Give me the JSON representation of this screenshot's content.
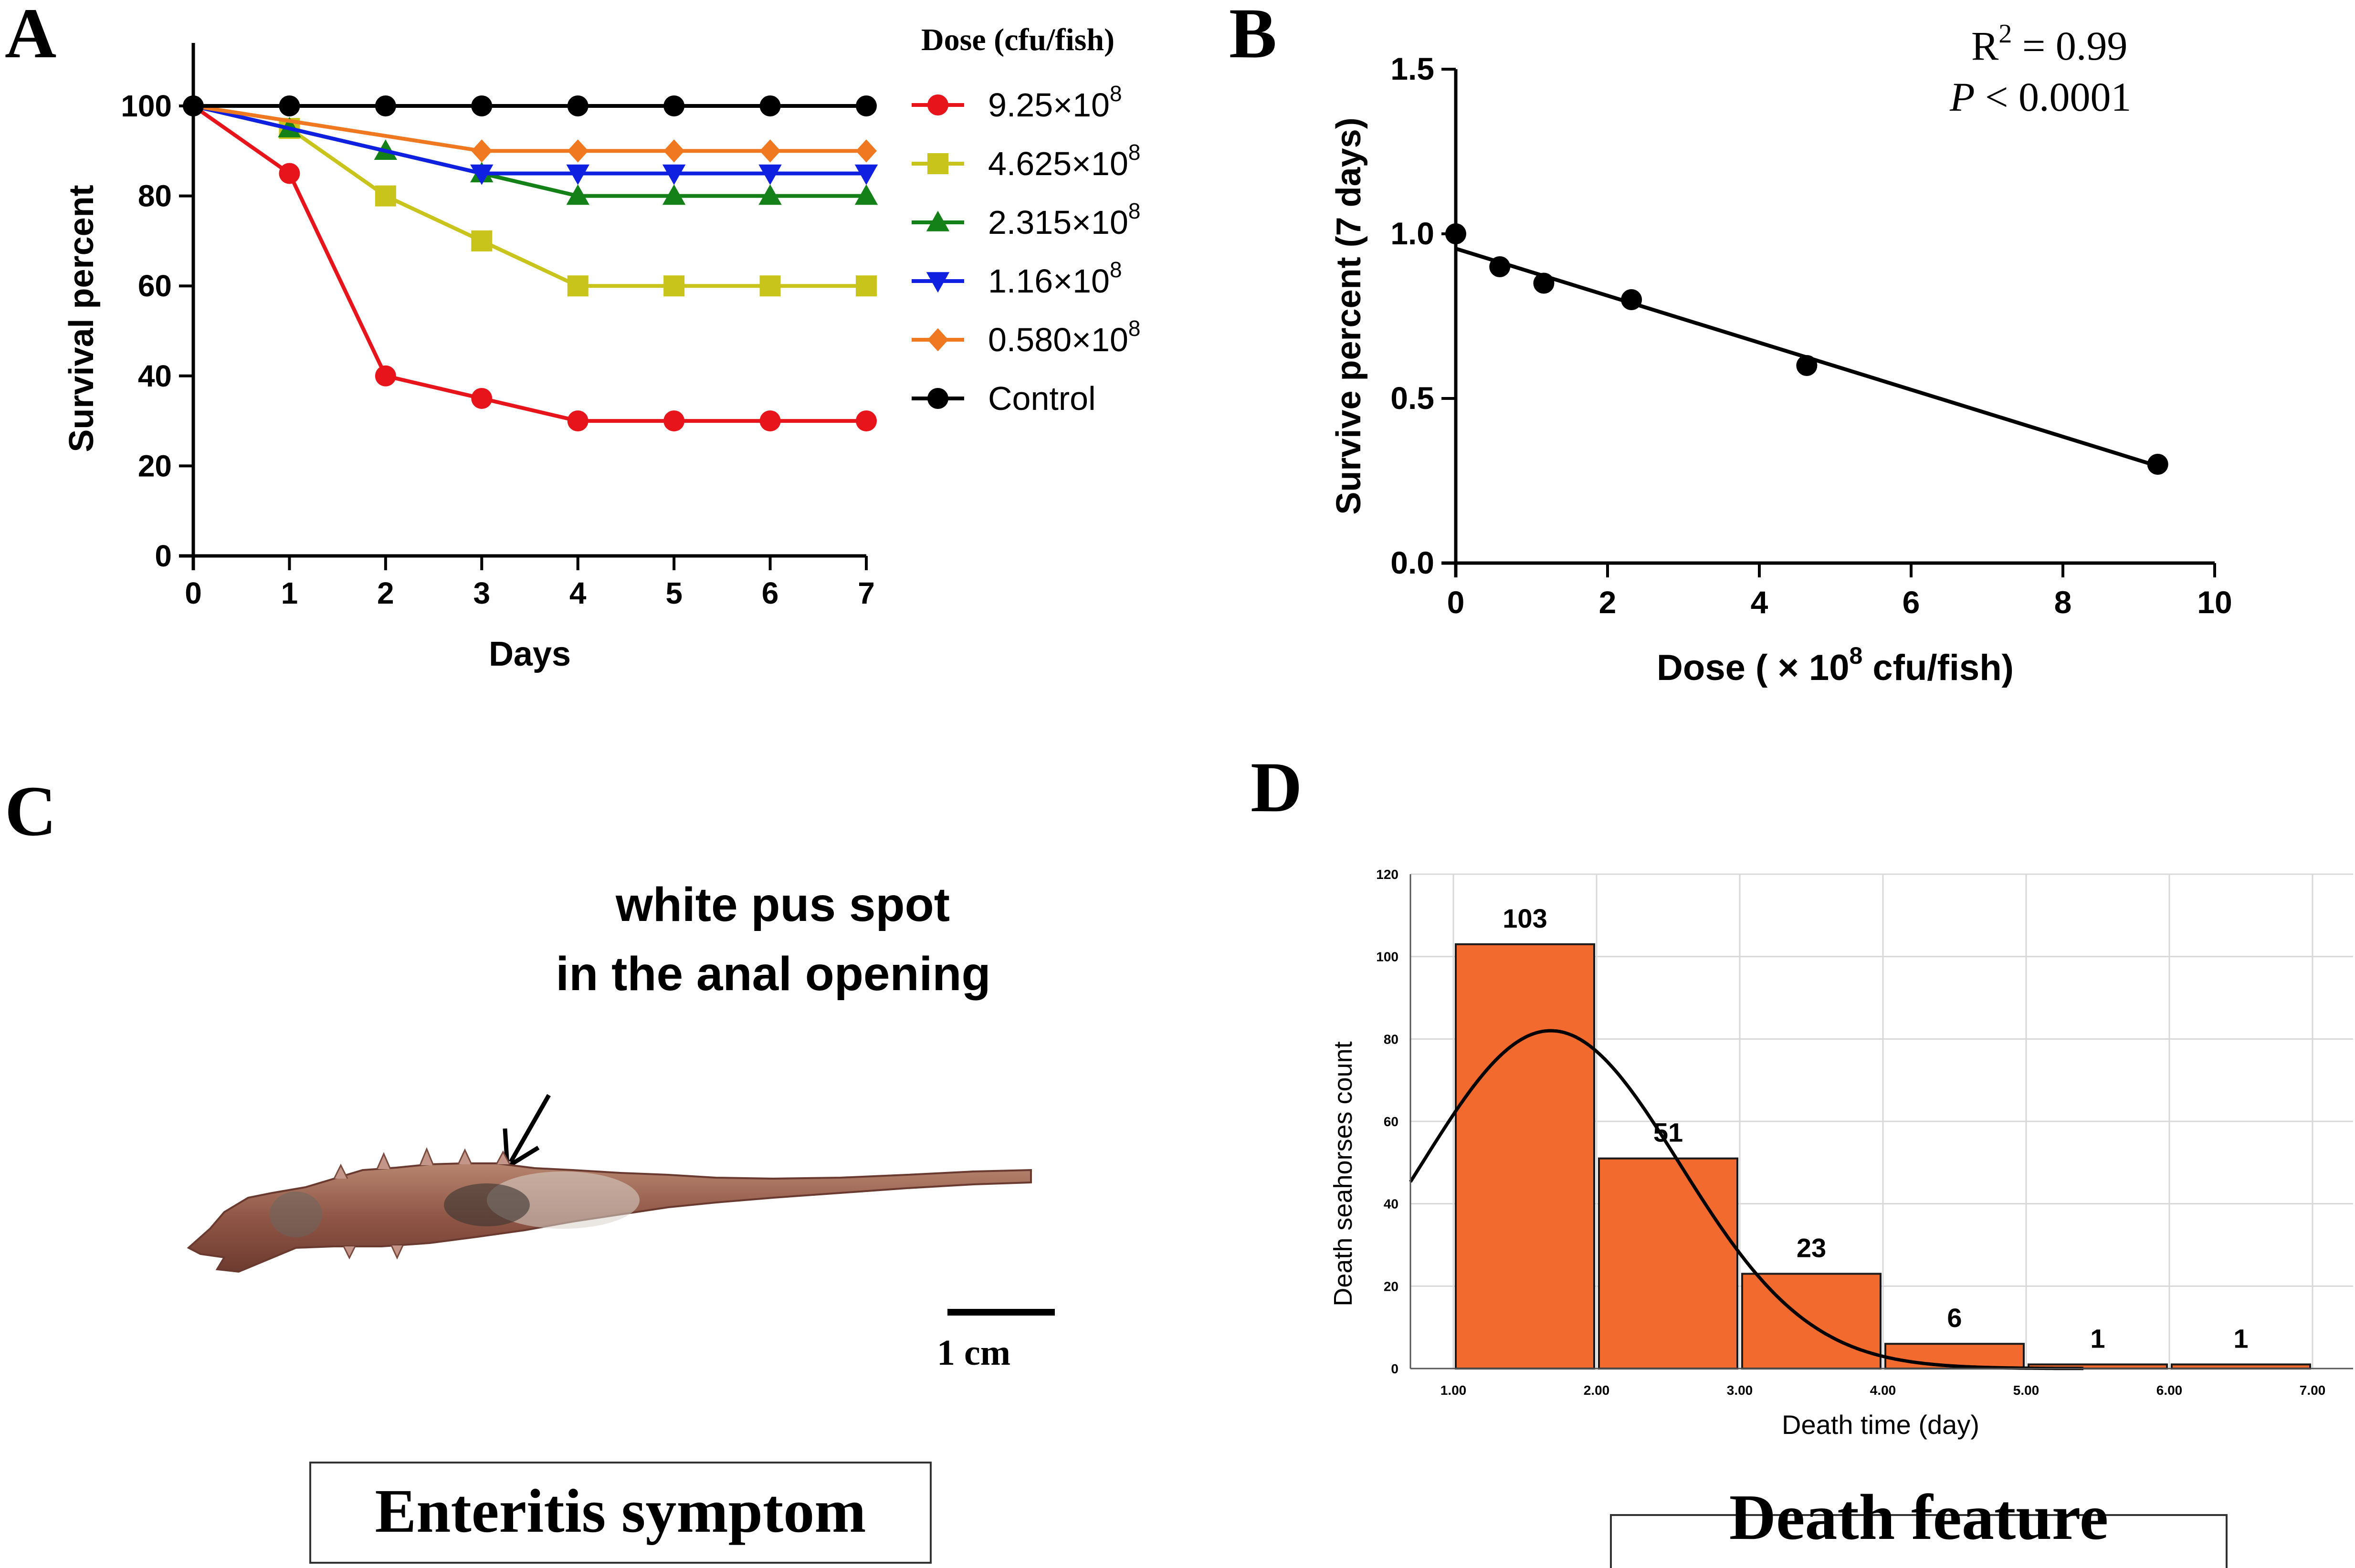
{
  "panels": {
    "A": {
      "letter": "A"
    },
    "B": {
      "letter": "B"
    },
    "C": {
      "letter": "C",
      "annotation_line1": "white pus spot",
      "annotation_line2": "in the anal opening",
      "scale_label": "1 cm",
      "caption": "Enteritis  symptom"
    },
    "D": {
      "letter": "D",
      "caption": "Death feature"
    }
  },
  "colors": {
    "red": "#e8141c",
    "yellow": "#c8c41c",
    "green": "#148018",
    "blue": "#1020e0",
    "orange": "#f07820",
    "black": "#000000",
    "bar": "#f26a2e"
  },
  "chart_data": [
    {
      "id": "A",
      "type": "line",
      "xlabel": "Days",
      "ylabel": "Survival percent",
      "xlim": [
        0,
        7
      ],
      "ylim": [
        0,
        110
      ],
      "x_ticks": [
        0,
        1,
        2,
        3,
        4,
        5,
        6,
        7
      ],
      "y_ticks": [
        0,
        20,
        40,
        60,
        80,
        100
      ],
      "legend_title": "Dose (cfu/fish)",
      "x": [
        0,
        1,
        2,
        3,
        4,
        5,
        6,
        7
      ],
      "series": [
        {
          "name": "9.25×10",
          "exp": "8",
          "marker": "circle",
          "color": "#e8141c",
          "values": [
            100,
            85,
            40,
            35,
            30,
            30,
            30,
            30
          ]
        },
        {
          "name": "4.625×10",
          "exp": "8",
          "marker": "square",
          "color": "#c8c41c",
          "values": [
            100,
            95,
            80,
            70,
            60,
            60,
            60,
            60
          ]
        },
        {
          "name": "2.315×10",
          "exp": "8",
          "marker": "triangle-up",
          "color": "#148018",
          "values": [
            100,
            95,
            90,
            85,
            80,
            80,
            80,
            80
          ]
        },
        {
          "name": "1.16×10",
          "exp": "8",
          "marker": "triangle-down",
          "color": "#1020e0",
          "values": [
            100,
            null,
            null,
            85,
            85,
            85,
            85,
            85
          ]
        },
        {
          "name": "0.580×10",
          "exp": "8",
          "marker": "diamond",
          "color": "#f07820",
          "values": [
            100,
            null,
            null,
            90,
            90,
            90,
            90,
            90
          ]
        },
        {
          "name": "Control",
          "exp": "",
          "marker": "circle",
          "color": "#000000",
          "values": [
            100,
            100,
            100,
            100,
            100,
            100,
            100,
            100
          ]
        }
      ]
    },
    {
      "id": "B",
      "type": "scatter",
      "xlabel_prefix": "Dose ( × 10",
      "xlabel_exp": "8",
      "xlabel_suffix": " cfu/fish)",
      "ylabel": "Survive percent (7 days)",
      "xlim": [
        0,
        10
      ],
      "ylim": [
        0,
        1.5
      ],
      "x_ticks": [
        0,
        2,
        4,
        6,
        8,
        10
      ],
      "y_ticks": [
        "0.0",
        "0.5",
        "1.0",
        "1.5"
      ],
      "points": [
        {
          "x": 0,
          "y": 1.0
        },
        {
          "x": 0.58,
          "y": 0.9
        },
        {
          "x": 1.16,
          "y": 0.85
        },
        {
          "x": 2.315,
          "y": 0.8
        },
        {
          "x": 4.625,
          "y": 0.6
        },
        {
          "x": 9.25,
          "y": 0.3
        }
      ],
      "fit": {
        "intercept": 0.955,
        "slope": -0.0714
      },
      "stat_r_label": "R",
      "stat_r_exp": "2",
      "stat_r_value": " = 0.99",
      "stat_p_label": "P",
      "stat_p_value": " <  0.0001"
    },
    {
      "id": "D",
      "type": "bar",
      "xlabel": "Death time (day)",
      "ylabel": "Death seahorses count",
      "xlim": [
        0.7,
        7.3
      ],
      "ylim": [
        0,
        120
      ],
      "x_ticks": [
        "1.00",
        "2.00",
        "3.00",
        "4.00",
        "5.00",
        "6.00",
        "7.00"
      ],
      "y_ticks": [
        0,
        20,
        40,
        60,
        80,
        100,
        120
      ],
      "bins": [
        {
          "start": 1,
          "end": 2,
          "value": 103
        },
        {
          "start": 2,
          "end": 3,
          "value": 51
        },
        {
          "start": 3,
          "end": 4,
          "value": 23
        },
        {
          "start": 4,
          "end": 5,
          "value": 6
        },
        {
          "start": 5,
          "end": 6,
          "value": 1
        },
        {
          "start": 6,
          "end": 7,
          "value": 1
        }
      ],
      "normal_curve": {
        "mean": 1.68,
        "sd": 0.9,
        "n": 185,
        "binwidth": 1
      }
    }
  ]
}
